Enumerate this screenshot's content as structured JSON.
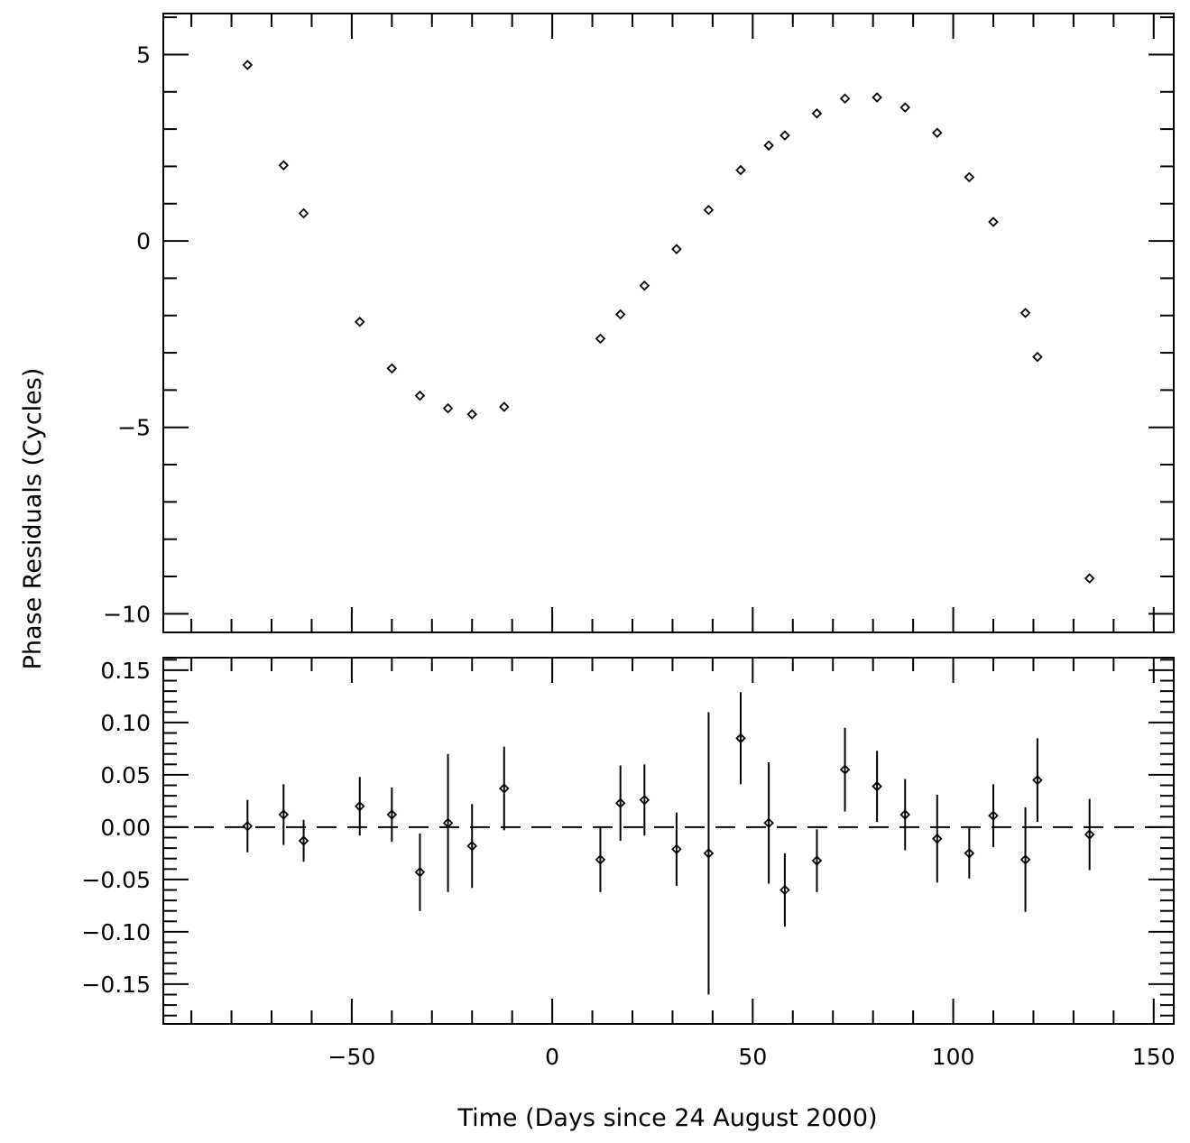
{
  "chart_data": [
    {
      "type": "scatter",
      "panel": "top",
      "ylabel": "Phase Residuals (Cycles)",
      "xlabel": "Time (Days since 24 August 2000)",
      "xlim": [
        -97,
        155
      ],
      "ylim": [
        -10.5,
        6.1
      ],
      "grid": false,
      "yticks_major": [
        5,
        0,
        -5,
        -10
      ],
      "ytick_labels": [
        "5",
        "0",
        "−5",
        "−10"
      ],
      "marker": "diamond",
      "series": [
        {
          "x": [
            -76,
            -67,
            -62,
            -48,
            -40,
            -33,
            -26,
            -20,
            -12,
            12,
            17,
            23,
            31,
            39,
            47,
            54,
            58,
            66,
            73,
            81,
            88,
            96,
            104,
            110,
            118,
            121,
            134
          ],
          "y": [
            4.72,
            2.03,
            0.74,
            -2.17,
            -3.42,
            -4.15,
            -4.49,
            -4.65,
            -4.45,
            -2.62,
            -1.97,
            -1.2,
            -0.22,
            0.83,
            1.9,
            2.56,
            2.83,
            3.42,
            3.82,
            3.85,
            3.58,
            2.9,
            1.71,
            0.51,
            -1.93,
            -3.11,
            -9.05
          ]
        }
      ]
    },
    {
      "type": "scatter",
      "panel": "bottom",
      "xlabel": "Time (Days since 24 August 2000)",
      "xlim": [
        -97,
        155
      ],
      "ylim": [
        -0.188,
        0.162
      ],
      "grid": false,
      "xticks_major": [
        -50,
        0,
        50,
        100,
        150
      ],
      "xtick_labels": [
        "−50",
        "0",
        "50",
        "100",
        "150"
      ],
      "yticks_major": [
        0.15,
        0.1,
        0.05,
        0,
        -0.05,
        -0.1,
        -0.15
      ],
      "ytick_labels": [
        "0.15",
        "0.10",
        "0.05",
        "0.00",
        "−0.05",
        "−0.10",
        "−0.15"
      ],
      "reference_line": {
        "y": 0,
        "style": "dashed"
      },
      "marker": "diamond",
      "series": [
        {
          "x": [
            -76,
            -67,
            -62,
            -48,
            -40,
            -33,
            -26,
            -20,
            -12,
            12,
            17,
            23,
            31,
            39,
            47,
            54,
            58,
            66,
            73,
            81,
            88,
            96,
            104,
            110,
            118,
            121,
            134
          ],
          "y": [
            0.001,
            0.012,
            -0.013,
            0.02,
            0.012,
            -0.043,
            0.004,
            -0.018,
            0.037,
            -0.031,
            0.023,
            0.026,
            -0.021,
            -0.025,
            0.085,
            0.004,
            -0.06,
            -0.032,
            0.055,
            0.039,
            0.012,
            -0.011,
            -0.025,
            0.011,
            -0.031,
            0.045,
            -0.007
          ],
          "err": [
            0.025,
            0.029,
            0.02,
            0.028,
            0.026,
            0.037,
            0.066,
            0.04,
            0.04,
            0.031,
            0.036,
            0.034,
            0.035,
            0.135,
            0.044,
            0.058,
            0.035,
            0.03,
            0.04,
            0.034,
            0.034,
            0.042,
            0.024,
            0.03,
            0.05,
            0.04,
            0.034
          ]
        }
      ]
    }
  ]
}
